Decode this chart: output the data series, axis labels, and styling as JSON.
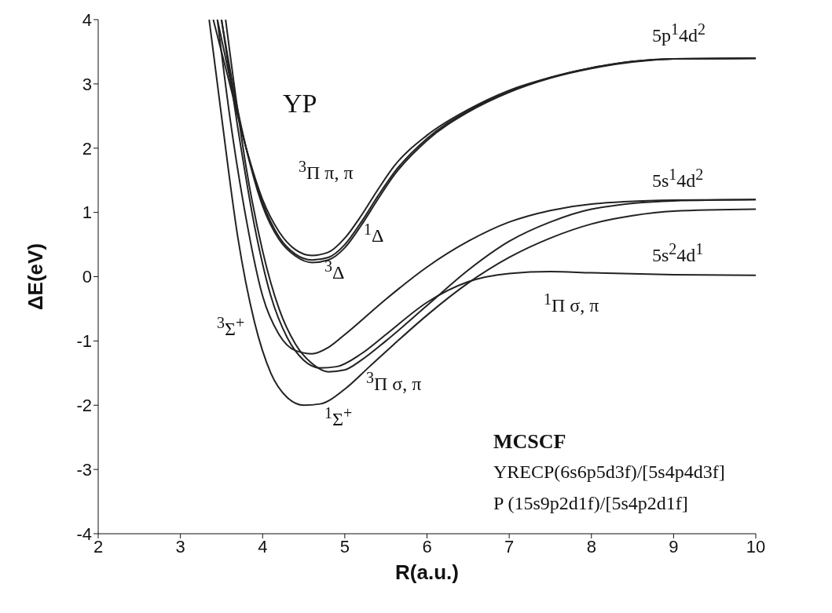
{
  "chart_data": {
    "type": "line",
    "xlabel": "R(a.u.)",
    "ylabel": "ΔE(eV)",
    "xlim": [
      2,
      10
    ],
    "ylim": [
      -4,
      4
    ],
    "xticks": [
      2,
      3,
      4,
      5,
      6,
      7,
      8,
      9,
      10
    ],
    "yticks": [
      -4,
      -3,
      -2,
      -1,
      0,
      1,
      2,
      3,
      4
    ],
    "marker": "none",
    "line_style": "solid",
    "series": [
      {
        "color": "#222222",
        "x": [
          3.4,
          3.6,
          3.8,
          4.0,
          4.2,
          4.4,
          4.6,
          4.8,
          5.0,
          5.2,
          5.4,
          5.6,
          6.0,
          6.5,
          7.0,
          7.5,
          8.0,
          8.5,
          9.0,
          10.0
        ],
        "values": [
          4,
          3.0,
          2.0,
          1.2,
          0.7,
          0.42,
          0.33,
          0.38,
          0.6,
          0.95,
          1.35,
          1.72,
          2.2,
          2.6,
          2.9,
          3.1,
          3.25,
          3.35,
          3.39,
          3.4
        ]
      },
      {
        "color": "#222222",
        "x": [
          3.45,
          3.6,
          3.8,
          4.0,
          4.2,
          4.4,
          4.6,
          4.8,
          5.0,
          5.2,
          5.4,
          5.6,
          6.0,
          6.5,
          7.0,
          7.5,
          8.0,
          8.5,
          9.0,
          10.0
        ],
        "values": [
          4,
          3.1,
          2.0,
          1.15,
          0.62,
          0.35,
          0.26,
          0.3,
          0.5,
          0.85,
          1.25,
          1.62,
          2.15,
          2.58,
          2.88,
          3.1,
          3.25,
          3.35,
          3.39,
          3.4
        ]
      },
      {
        "color": "#222222",
        "x": [
          3.5,
          3.65,
          3.8,
          4.0,
          4.2,
          4.4,
          4.6,
          4.8,
          5.0,
          5.2,
          5.4,
          5.6,
          6.0,
          6.5,
          7.0,
          7.5,
          8.0,
          8.5,
          9.0,
          10.0
        ],
        "values": [
          4,
          2.9,
          2.0,
          1.1,
          0.58,
          0.32,
          0.22,
          0.26,
          0.45,
          0.8,
          1.2,
          1.58,
          2.12,
          2.56,
          2.87,
          3.09,
          3.24,
          3.34,
          3.39,
          3.4
        ]
      },
      {
        "color": "#222222",
        "x": [
          3.45,
          3.6,
          3.8,
          4.0,
          4.2,
          4.4,
          4.6,
          4.8,
          5.0,
          5.5,
          6.0,
          6.5,
          7.0,
          7.5,
          8.0,
          9.0,
          10.0
        ],
        "values": [
          4,
          2.5,
          0.9,
          -0.3,
          -0.9,
          -1.15,
          -1.2,
          -1.1,
          -0.9,
          -0.35,
          0.15,
          0.55,
          0.85,
          1.03,
          1.13,
          1.19,
          1.2
        ]
      },
      {
        "color": "#222222",
        "x": [
          3.55,
          3.8,
          4.0,
          4.2,
          4.4,
          4.6,
          4.8,
          5.0,
          5.2,
          5.5,
          6.0,
          6.5,
          7.0,
          7.5,
          8.0,
          9.0,
          10.0
        ],
        "values": [
          4,
          1.7,
          0.4,
          -0.5,
          -1.05,
          -1.35,
          -1.48,
          -1.45,
          -1.3,
          -1.0,
          -0.45,
          0.1,
          0.55,
          0.85,
          1.05,
          1.18,
          1.2
        ]
      },
      {
        "color": "#222222",
        "x": [
          3.35,
          3.5,
          3.7,
          3.9,
          4.1,
          4.3,
          4.5,
          4.7,
          5.0,
          5.3,
          5.6,
          6.0,
          6.5,
          7.0,
          7.5,
          8.0,
          8.5,
          9.0,
          10.0
        ],
        "values": [
          4,
          2.5,
          0.6,
          -0.7,
          -1.5,
          -1.88,
          -2.0,
          -1.98,
          -1.75,
          -1.4,
          -1.05,
          -0.6,
          -0.1,
          0.3,
          0.6,
          0.82,
          0.95,
          1.02,
          1.05
        ]
      },
      {
        "color": "#222222",
        "x": [
          3.5,
          3.7,
          3.9,
          4.1,
          4.3,
          4.5,
          4.7,
          4.9,
          5.2,
          5.5,
          6.0,
          6.5,
          7.0,
          7.5,
          8.0,
          9.0,
          10.0
        ],
        "values": [
          4,
          2.3,
          0.8,
          -0.3,
          -0.95,
          -1.3,
          -1.42,
          -1.4,
          -1.2,
          -0.9,
          -0.4,
          -0.08,
          0.05,
          0.08,
          0.06,
          0.03,
          0.02
        ]
      }
    ],
    "annotations": [
      "$^{3}$Π π, π",
      "$^{1}$Δ",
      "$^{3}$Δ",
      "$^{3}$Σ$^{+}$",
      "$^{3}$Π σ, π",
      "$^{1}$Σ$^{+}$",
      "$^{1}$Π σ, π",
      "5p$^{1}$4d$^{2}$",
      "5s$^{1}$4d$^{2}$",
      "5s$^{2}$4d$^{1}$",
      "YP",
      "MCSCF",
      "YRECP(6s6p5d3f)/[5s4p4d3f]",
      "P (15s9p2d1f)/[5s4p2d1f]"
    ]
  }
}
